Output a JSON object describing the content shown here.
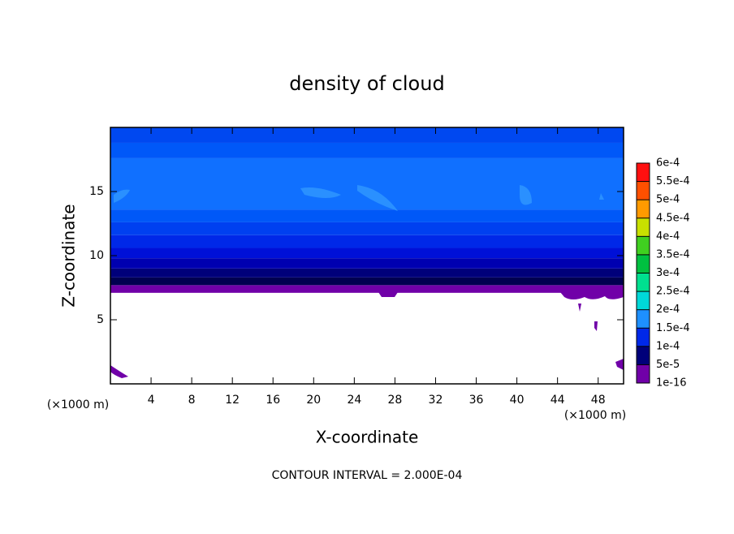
{
  "chart_data": {
    "type": "contour",
    "title": "density of cloud",
    "xlabel": "X-coordinate",
    "ylabel": "Z-coordinate",
    "x_unit": "(×1000 m)",
    "y_unit": "(×1000 m)",
    "footer": "CONTOUR INTERVAL = 2.000E-04",
    "xlim": [
      0,
      50.5
    ],
    "ylim": [
      0,
      20
    ],
    "xticks": [
      4,
      8,
      12,
      16,
      20,
      24,
      28,
      32,
      36,
      40,
      44,
      48
    ],
    "yticks": [
      5,
      10,
      15
    ],
    "levels": [
      {
        "value": 1e-16,
        "label": "1e-16"
      },
      {
        "value": 5e-05,
        "label": "5e-5"
      },
      {
        "value": 0.0001,
        "label": "1e-4"
      },
      {
        "value": 0.00015,
        "label": "1.5e-4"
      },
      {
        "value": 0.0002,
        "label": "2e-4"
      },
      {
        "value": 0.00025,
        "label": "2.5e-4"
      },
      {
        "value": 0.0003,
        "label": "3e-4"
      },
      {
        "value": 0.00035,
        "label": "3.5e-4"
      },
      {
        "value": 0.0004,
        "label": "4e-4"
      },
      {
        "value": 0.00045,
        "label": "4.5e-4"
      },
      {
        "value": 0.0005,
        "label": "5e-4"
      },
      {
        "value": 0.00055,
        "label": "5.5e-4"
      },
      {
        "value": 0.0006,
        "label": "6e-4"
      }
    ],
    "level_colors": [
      "#7000a8",
      "#00007a",
      "#0028e8",
      "#1e90ff",
      "#00d8d8",
      "#00e090",
      "#00c040",
      "#40d020",
      "#c8e000",
      "#ff9a00",
      "#ff5000",
      "#ff1010"
    ],
    "bands": [
      {
        "z": [
          7.1,
          7.7
        ],
        "color": "#7000a8"
      },
      {
        "z": [
          7.7,
          8.3
        ],
        "color": "#000050"
      },
      {
        "z": [
          8.3,
          9.0
        ],
        "color": "#00007a"
      },
      {
        "z": [
          9.0,
          9.8
        ],
        "color": "#0000b0"
      },
      {
        "z": [
          9.8,
          10.6
        ],
        "color": "#0010d8"
      },
      {
        "z": [
          10.6,
          11.6
        ],
        "color": "#0028e8"
      },
      {
        "z": [
          11.6,
          12.6
        ],
        "color": "#0040f0"
      },
      {
        "z": [
          12.6,
          13.6
        ],
        "color": "#0058f8"
      },
      {
        "z": [
          13.6,
          17.6
        ],
        "color": "#1070ff"
      },
      {
        "z": [
          17.6,
          18.8
        ],
        "color": "#0058f8"
      },
      {
        "z": [
          18.8,
          20
        ],
        "color": "#0048f0"
      }
    ]
  }
}
